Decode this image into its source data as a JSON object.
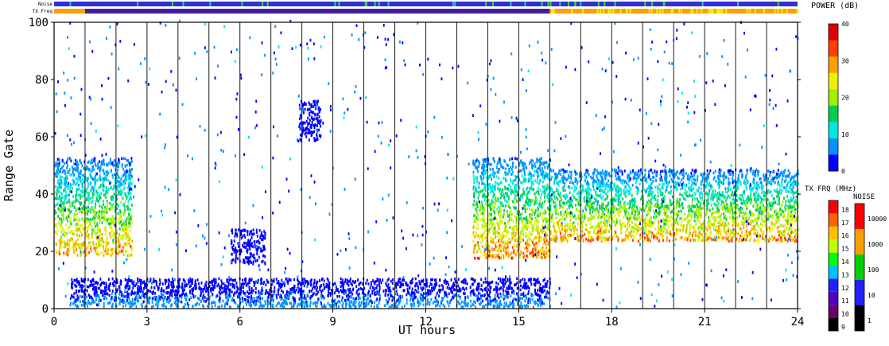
{
  "chart_data": {
    "type": "heatmap",
    "xlabel": "UT hours",
    "ylabel": "Range Gate",
    "xlim": [
      0,
      24
    ],
    "ylim": [
      0,
      100
    ],
    "x_ticks": [
      "0",
      "3",
      "6",
      "9",
      "12",
      "15",
      "18",
      "21",
      "24"
    ],
    "y_ticks": [
      "0",
      "20",
      "40",
      "60",
      "80",
      "100"
    ],
    "top_bars": {
      "noise_label": "Noise",
      "txfreq_label": "TX Freq"
    },
    "power_scale": {
      "title": "POWER (dB)",
      "ticks": [
        "0",
        "10",
        "20",
        "30",
        "40"
      ],
      "range": [
        0,
        40
      ]
    },
    "txfreq_scale": {
      "title": "TX FRQ (MHz)",
      "labels": [
        "9",
        "10",
        "11",
        "12",
        "13",
        "14",
        "15",
        "16",
        "17",
        "18"
      ]
    },
    "noise_scale": {
      "title": "NOISE",
      "labels": [
        "1",
        "10",
        "100",
        "1000",
        "10000"
      ]
    },
    "echo_bands": [
      {
        "name": "early",
        "x": [
          0.0,
          2.5
        ],
        "gate": [
          18,
          52
        ],
        "peak_power_db": 35
      },
      {
        "name": "evening",
        "x": [
          13.5,
          16.0
        ],
        "gate": [
          17,
          52
        ],
        "peak_power_db": 38
      },
      {
        "name": "night",
        "x": [
          16.0,
          24.0
        ],
        "gate": [
          23,
          48
        ],
        "peak_power_db": 36
      },
      {
        "name": "ground",
        "x": [
          0.5,
          16.0
        ],
        "gate": [
          0,
          10
        ],
        "peak_power_db": 8
      },
      {
        "name": "patch",
        "x": [
          5.7,
          6.8
        ],
        "gate": [
          15,
          27
        ],
        "peak_power_db": 4
      },
      {
        "name": "patch",
        "x": [
          7.9,
          8.6
        ],
        "gate": [
          58,
          72
        ],
        "peak_power_db": 4
      }
    ]
  },
  "colors": {
    "power": [
      "#0000ff",
      "#0094ff",
      "#00e8e0",
      "#00d050",
      "#a0f000",
      "#f0f000",
      "#ffa000",
      "#ff4000",
      "#e00000"
    ],
    "txfreq": [
      "#000000",
      "#680068",
      "#5000c0",
      "#2020ff",
      "#00c0ff",
      "#00ff00",
      "#c0ff00",
      "#ffc000",
      "#ff6000",
      "#ff0000"
    ],
    "noise": [
      "#000000",
      "#2020ff",
      "#00d000",
      "#ffa000",
      "#ff0000"
    ],
    "noise_bar": "#3030d8",
    "txfreq_bar_day": "#ffa000",
    "txfreq_bar_mid": "#4020a0"
  }
}
